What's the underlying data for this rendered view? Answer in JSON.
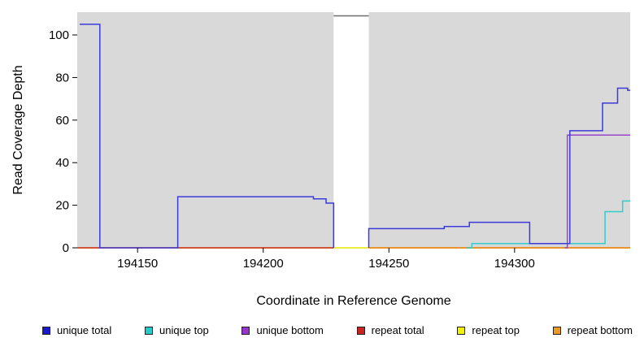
{
  "chart_data": {
    "type": "line",
    "step": true,
    "title": "",
    "xlabel": "Coordinate in Reference Genome",
    "ylabel": "Read Coverage Depth",
    "xlim": [
      194126,
      194346
    ],
    "ylim": [
      0,
      110.7
    ],
    "xticks": [
      194150,
      194200,
      194250,
      194300
    ],
    "yticks": [
      0,
      20,
      40,
      60,
      80,
      100
    ],
    "grid": false,
    "panel_color": "#d9d9d9",
    "gap_region": {
      "x0": 194228,
      "x1": 194242
    },
    "clip_marker": {
      "x0": 194228,
      "x1": 194242,
      "y": 109,
      "color": "#6e6e6e"
    },
    "series": [
      {
        "name": "repeat top",
        "color": "#e8e800",
        "segments": [
          {
            "points": [
              [
                194126,
                0
              ]
            ],
            "end": 194346
          }
        ]
      },
      {
        "name": "repeat total",
        "color": "#cc2222",
        "segments": [
          {
            "points": [
              [
                194126,
                0
              ]
            ],
            "end": 194228
          },
          {
            "points": [
              [
                194242,
                0
              ]
            ],
            "end": 194346
          }
        ]
      },
      {
        "name": "repeat bottom",
        "color": "#ee9922",
        "segments": [
          {
            "points": [
              [
                194242,
                0
              ]
            ],
            "end": 194346
          }
        ]
      },
      {
        "name": "unique bottom",
        "color": "#9944cc",
        "segments": [
          {
            "points": [
              [
                194320,
                0
              ],
              [
                194321,
                53
              ]
            ],
            "end": 194346
          }
        ]
      },
      {
        "name": "unique top",
        "color": "#33cccc",
        "segments": [
          {
            "points": [
              [
                194281,
                0
              ],
              [
                194283,
                2
              ],
              [
                194336,
                17
              ],
              [
                194343,
                22
              ]
            ],
            "end": 194346
          }
        ]
      },
      {
        "name": "unique total",
        "color": "#3b3bd9",
        "segments": [
          {
            "points": [
              [
                194127,
                105
              ],
              [
                194135,
                0
              ],
              [
                194166,
                24
              ],
              [
                194220,
                23
              ],
              [
                194225,
                21
              ],
              [
                194228,
                0
              ]
            ],
            "end": 194228
          },
          {
            "points": [
              [
                194242,
                0
              ],
              [
                194242,
                9
              ],
              [
                194272,
                10
              ],
              [
                194282,
                12
              ],
              [
                194306,
                2
              ],
              [
                194322,
                55
              ],
              [
                194335,
                68
              ],
              [
                194341,
                75
              ],
              [
                194345,
                74
              ]
            ],
            "end": 194346
          }
        ]
      }
    ],
    "legend": [
      {
        "label": "unique total",
        "color": "#1a1acc"
      },
      {
        "label": "unique top",
        "color": "#22cccc"
      },
      {
        "label": "unique bottom",
        "color": "#9933cc"
      },
      {
        "label": "repeat total",
        "color": "#cc2222"
      },
      {
        "label": "repeat top",
        "color": "#f2f200"
      },
      {
        "label": "repeat bottom",
        "color": "#ee9922"
      }
    ]
  }
}
